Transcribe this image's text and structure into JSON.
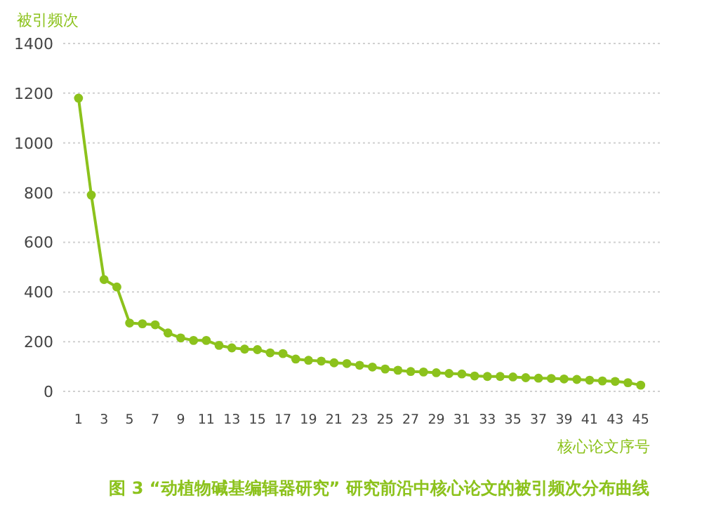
{
  "chart_data": {
    "type": "line",
    "title": "图 3 “动植物碱基编辑器研究” 研究前沿中核心论文的被引频次分布曲线",
    "xlabel": "核心论文序号",
    "ylabel": "被引频次",
    "x": [
      1,
      2,
      3,
      4,
      5,
      6,
      7,
      8,
      9,
      10,
      11,
      12,
      13,
      14,
      15,
      16,
      17,
      18,
      19,
      20,
      21,
      22,
      23,
      24,
      25,
      26,
      27,
      28,
      29,
      30,
      31,
      32,
      33,
      34,
      35,
      36,
      37,
      38,
      39,
      40,
      41,
      42,
      43,
      44,
      45
    ],
    "values": [
      1180,
      790,
      450,
      420,
      275,
      272,
      268,
      235,
      215,
      205,
      205,
      185,
      175,
      170,
      168,
      155,
      152,
      130,
      125,
      122,
      115,
      112,
      105,
      98,
      90,
      85,
      80,
      78,
      75,
      72,
      70,
      62,
      60,
      60,
      58,
      55,
      53,
      52,
      50,
      48,
      45,
      42,
      40,
      35,
      25
    ],
    "color": "#8cc21c",
    "xlim": [
      -0.2,
      46.5
    ],
    "xticks": [
      1,
      3,
      5,
      7,
      9,
      11,
      13,
      15,
      17,
      19,
      21,
      23,
      25,
      27,
      29,
      31,
      33,
      35,
      37,
      39,
      41,
      43,
      45
    ],
    "ylim": [
      0,
      1400
    ],
    "yticks": [
      0,
      200,
      400,
      600,
      800,
      1000,
      1200,
      1400
    ],
    "grid": "y",
    "marker": "circle",
    "line_style": "solid"
  }
}
